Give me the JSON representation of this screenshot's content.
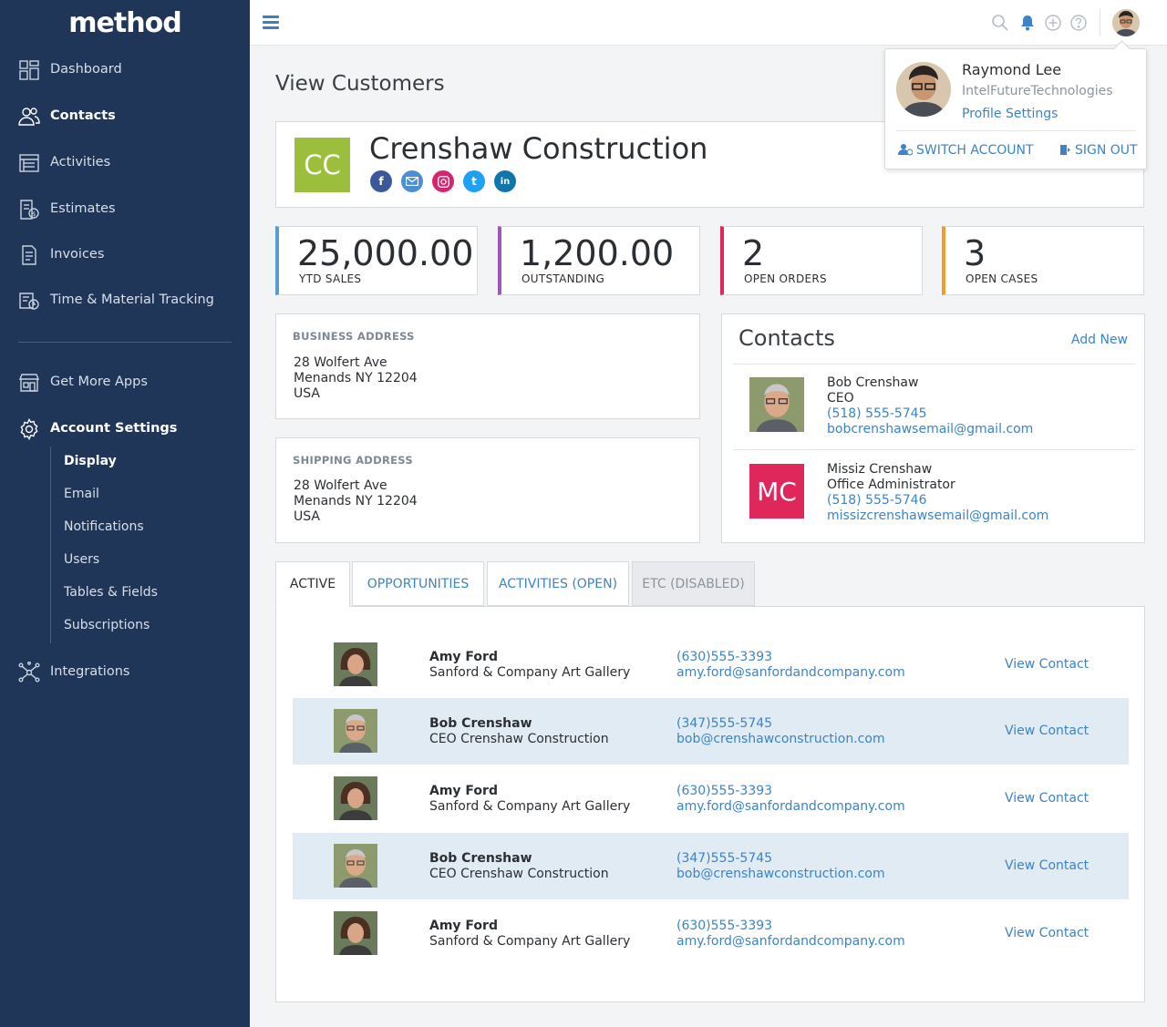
{
  "app": {
    "logo": "method"
  },
  "sidebar": {
    "items": [
      {
        "label": "Dashboard",
        "icon": "dashboard-icon"
      },
      {
        "label": "Contacts",
        "icon": "contacts-icon"
      },
      {
        "label": "Activities",
        "icon": "activities-icon"
      },
      {
        "label": "Estimates",
        "icon": "estimates-icon"
      },
      {
        "label": "Invoices",
        "icon": "invoices-icon"
      },
      {
        "label": "Time & Material Tracking",
        "icon": "time-tracking-icon"
      },
      {
        "label": "Get More Apps",
        "icon": "store-icon"
      },
      {
        "label": "Account Settings",
        "icon": "gear-icon"
      },
      {
        "label": "Integrations",
        "icon": "integrations-icon"
      }
    ],
    "settings_sub": [
      "Display",
      "Email",
      "Notifications",
      "Users",
      "Tables & Fields",
      "Subscriptions"
    ]
  },
  "profile": {
    "name": "Raymond Lee",
    "company": "IntelFutureTechnologies",
    "settings_label": "Profile Settings",
    "switch_label": "SWITCH ACCOUNT",
    "signout_label": "SIGN OUT"
  },
  "page": {
    "title": "View Customers"
  },
  "customer": {
    "initials": "CC",
    "name": "Crenshaw Construction",
    "social": [
      "facebook-icon",
      "email-icon",
      "instagram-icon",
      "twitter-icon",
      "linkedin-icon"
    ]
  },
  "stats": [
    {
      "value": "25,000.00",
      "label": "YTD SALES",
      "color": "#5b9bd5"
    },
    {
      "value": "1,200.00",
      "label": "OUTSTANDING",
      "color": "#9b59b6"
    },
    {
      "value": "2",
      "label": "OPEN ORDERS",
      "color": "#e0275c"
    },
    {
      "value": "3",
      "label": "OPEN CASES",
      "color": "#f39c2b"
    }
  ],
  "business_address": {
    "heading": "BUSINESS ADDRESS",
    "line1": "28 Wolfert Ave",
    "line2": "Menands NY 12204",
    "line3": "USA"
  },
  "shipping_address": {
    "heading": "SHIPPING ADDRESS",
    "line1": "28 Wolfert Ave",
    "line2": "Menands NY 12204",
    "line3": "USA"
  },
  "contacts": {
    "title": "Contacts",
    "add_label": "Add New",
    "people": [
      {
        "name": "Bob Crenshaw",
        "role": "CEO",
        "phone": "(518) 555-5745",
        "email": "bobcrenshawsemail@gmail.com"
      },
      {
        "initials": "MC",
        "name": "Missiz Crenshaw",
        "role": "Office Administrator",
        "phone": "(518) 555-5746",
        "email": "missizcrenshawsemail@gmail.com"
      }
    ]
  },
  "tabs": [
    {
      "label": "ACTIVE"
    },
    {
      "label": "OPPORTUNITIES"
    },
    {
      "label": "ACTIVITIES (OPEN)"
    },
    {
      "label": "ETC (DISABLED)"
    }
  ],
  "rows": [
    {
      "name": "Amy Ford",
      "sub": "Sanford & Company Art Gallery",
      "phone": "(630)555-3393",
      "email": "amy.ford@sanfordandcompany.com",
      "action": "View Contact"
    },
    {
      "name": "Bob Crenshaw",
      "sub": "CEO Crenshaw Construction",
      "phone": "(347)555-5745",
      "email": "bob@crenshawconstruction.com",
      "action": "View Contact"
    },
    {
      "name": "Amy Ford",
      "sub": "Sanford & Company Art Gallery",
      "phone": "(630)555-3393",
      "email": "amy.ford@sanfordandcompany.com",
      "action": "View Contact"
    },
    {
      "name": "Bob Crenshaw",
      "sub": "CEO Crenshaw Construction",
      "phone": "(347)555-5745",
      "email": "bob@crenshawconstruction.com",
      "action": "View Contact"
    },
    {
      "name": "Amy Ford",
      "sub": "Sanford & Company Art Gallery",
      "phone": "(630)555-3393",
      "email": "amy.ford@sanfordandcompany.com",
      "action": "View Contact"
    }
  ]
}
